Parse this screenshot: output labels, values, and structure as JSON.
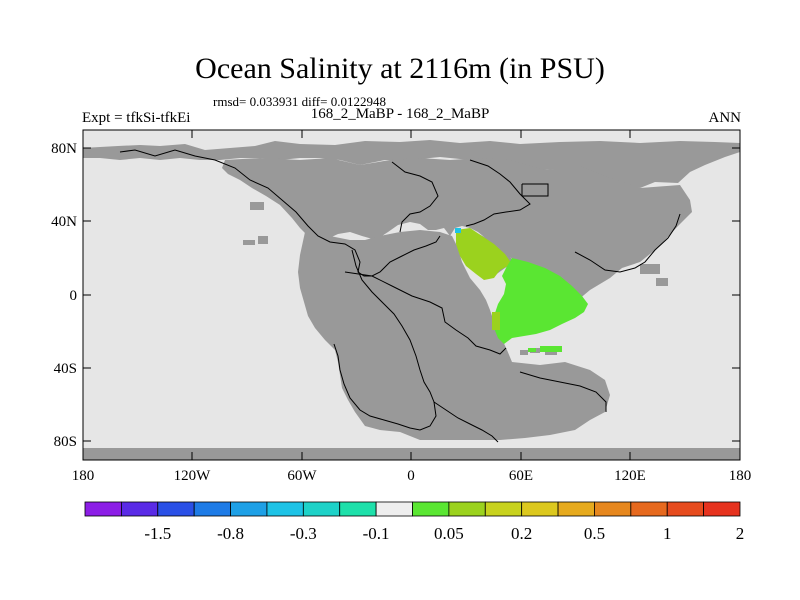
{
  "title": "Ocean Salinity at 2116m (in PSU)",
  "stats": "rmsd= 0.033931 diff= 0.0122948",
  "left_label": "Expt = tfkSi-tfkEi",
  "center_label": "168_2_MaBP - 168_2_MaBP",
  "right_label": "ANN",
  "lat_ticks": [
    "80N",
    "40N",
    "0",
    "40S",
    "80S"
  ],
  "lon_ticks": [
    "180",
    "120W",
    "60W",
    "0",
    "60E",
    "120E",
    "180"
  ],
  "colors": {
    "land": "#999999",
    "ocean_unchanged": "#e6e6e6",
    "frame": "#000000"
  },
  "colorbar": {
    "colors": [
      "#8c1ee6",
      "#5a2be6",
      "#2a50e6",
      "#1e7be6",
      "#1ea0e6",
      "#1ec3e6",
      "#1ed2c8",
      "#1ee0aa",
      "#eeeeee",
      "#5ae632",
      "#9bd21e",
      "#c8d21e",
      "#dcc81e",
      "#e6aa1e",
      "#e6871e",
      "#e6691e",
      "#e64b1e",
      "#e6321e"
    ],
    "labels": [
      "-1.5",
      "-0.8",
      "-0.3",
      "-0.1",
      "0.05",
      "0.2",
      "0.5",
      "1",
      "2"
    ]
  },
  "anomaly_regions": [
    {
      "name": "arabian-region",
      "value": "0.05 to 0.2",
      "color": "#9bd21e"
    },
    {
      "name": "indian-ocean-region",
      "value": "0.05 to 0.2",
      "color": "#5ae632"
    },
    {
      "name": "small-cyan-patch",
      "value": "-0.3 to -0.1",
      "color": "#1ec3e6"
    }
  ]
}
